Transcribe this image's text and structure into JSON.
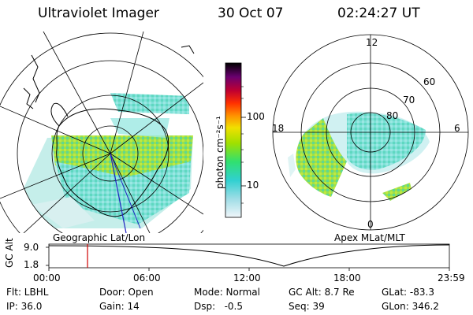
{
  "header": {
    "title": "Ultraviolet Imager",
    "date": "30 Oct 07",
    "time": "02:24:27 UT"
  },
  "left_map": {
    "label": "Geographic Lat/Lon"
  },
  "right_map": {
    "label": "Apex MLat/MLT",
    "mlt_labels": [
      "12",
      "18",
      "6",
      "0"
    ],
    "lat_labels": [
      "60",
      "70",
      "80"
    ]
  },
  "colorbar": {
    "unit": "photon cm⁻²s⁻¹",
    "tick_labels": [
      "100",
      "10"
    ],
    "scale": "log",
    "colors": [
      "#000000",
      "#3a0050",
      "#7a0070",
      "#c00030",
      "#ff3000",
      "#ff9000",
      "#f0e000",
      "#a0e000",
      "#30e060",
      "#30d0d0",
      "#e0f0f8"
    ]
  },
  "timeline": {
    "ylabel": "GC Alt",
    "y_ticks": [
      "9.0",
      "1.8"
    ],
    "x_ticks": [
      "00:00",
      "06:00",
      "12:00",
      "18:00",
      "23:59"
    ],
    "marker_time": "02:24"
  },
  "info": {
    "filter": "Flt: LBHL",
    "door": "Door: Open",
    "mode": "Mode: Normal",
    "gc_alt": "GC Alt: 8.7 Re",
    "glat": "GLat: -83.3",
    "ip": "IP: 36.0",
    "gain": "Gain: 14",
    "dsp": "Dsp:   -0.5",
    "seq": "Seq: 39",
    "glon": "GLon: 346.2"
  }
}
